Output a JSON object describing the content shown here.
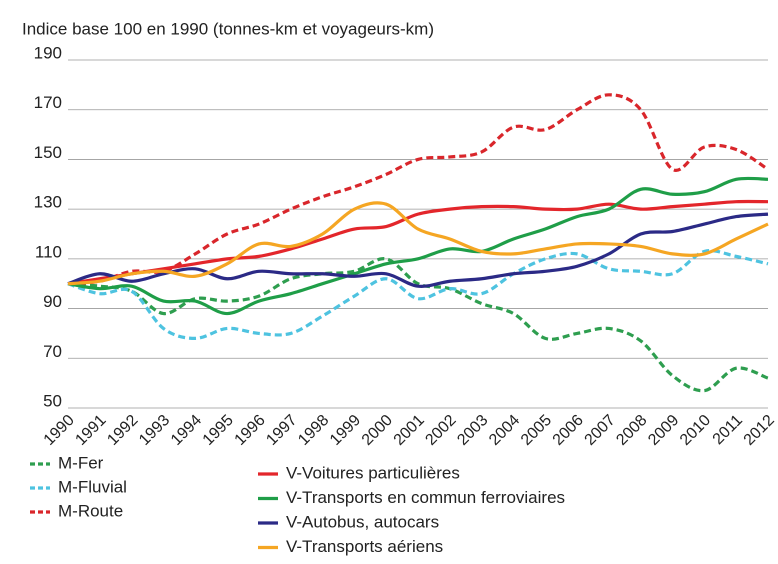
{
  "chart_data": {
    "type": "line",
    "title": "Indice base 100 en 1990 (tonnes-km et voyageurs-km)",
    "x": [
      1990,
      1991,
      1992,
      1993,
      1994,
      1995,
      1996,
      1997,
      1998,
      1999,
      2000,
      2001,
      2002,
      2003,
      2004,
      2005,
      2006,
      2007,
      2008,
      2009,
      2010,
      2011,
      2012
    ],
    "xlim": [
      1990,
      2012
    ],
    "ylim": [
      50,
      190
    ],
    "yticks": [
      50,
      70,
      90,
      110,
      130,
      150,
      170,
      190
    ],
    "grid": true,
    "series": [
      {
        "name": "M-Fer",
        "color": "#2e9e4f",
        "dashed": true,
        "values": [
          100,
          99,
          97,
          88,
          94,
          93,
          95,
          102,
          104,
          105,
          110,
          100,
          98,
          92,
          88,
          78,
          80,
          82,
          77,
          63,
          57,
          66,
          62
        ]
      },
      {
        "name": "M-Fluvial",
        "color": "#4ec3e0",
        "dashed": true,
        "values": [
          100,
          96,
          97,
          82,
          78,
          82,
          80,
          80,
          87,
          95,
          102,
          94,
          98,
          96,
          104,
          110,
          112,
          106,
          105,
          104,
          113,
          111,
          108
        ]
      },
      {
        "name": "M-Route",
        "color": "#d9262b",
        "dashed": true,
        "values": [
          100,
          101,
          105,
          105,
          112,
          120,
          124,
          130,
          135,
          139,
          144,
          150,
          151,
          153,
          163,
          162,
          170,
          176,
          170,
          146,
          155,
          154,
          146
        ]
      },
      {
        "name": "V-Voitures particulières",
        "color": "#e3262b",
        "dashed": false,
        "values": [
          100,
          102,
          104,
          106,
          108,
          110,
          111,
          114,
          118,
          122,
          123,
          128,
          130,
          131,
          131,
          130,
          130,
          132,
          130,
          131,
          132,
          133,
          133
        ]
      },
      {
        "name": "V-Transports en commun ferroviaires",
        "color": "#1f9e48",
        "dashed": false,
        "values": [
          100,
          98,
          99,
          93,
          93,
          88,
          93,
          96,
          100,
          104,
          108,
          110,
          114,
          113,
          118,
          122,
          127,
          130,
          138,
          136,
          137,
          142,
          142
        ]
      },
      {
        "name": "V-Autobus, autocars",
        "color": "#2b2a86",
        "dashed": false,
        "values": [
          100,
          104,
          101,
          104,
          106,
          102,
          105,
          104,
          104,
          103,
          104,
          99,
          101,
          102,
          104,
          105,
          107,
          112,
          120,
          121,
          124,
          127,
          128
        ]
      },
      {
        "name": "V-Transports aériens",
        "color": "#f5a623",
        "dashed": false,
        "values": [
          100,
          101,
          104,
          105,
          103,
          108,
          116,
          115,
          120,
          130,
          132,
          122,
          118,
          113,
          112,
          114,
          116,
          116,
          115,
          112,
          112,
          118,
          124
        ]
      }
    ]
  }
}
